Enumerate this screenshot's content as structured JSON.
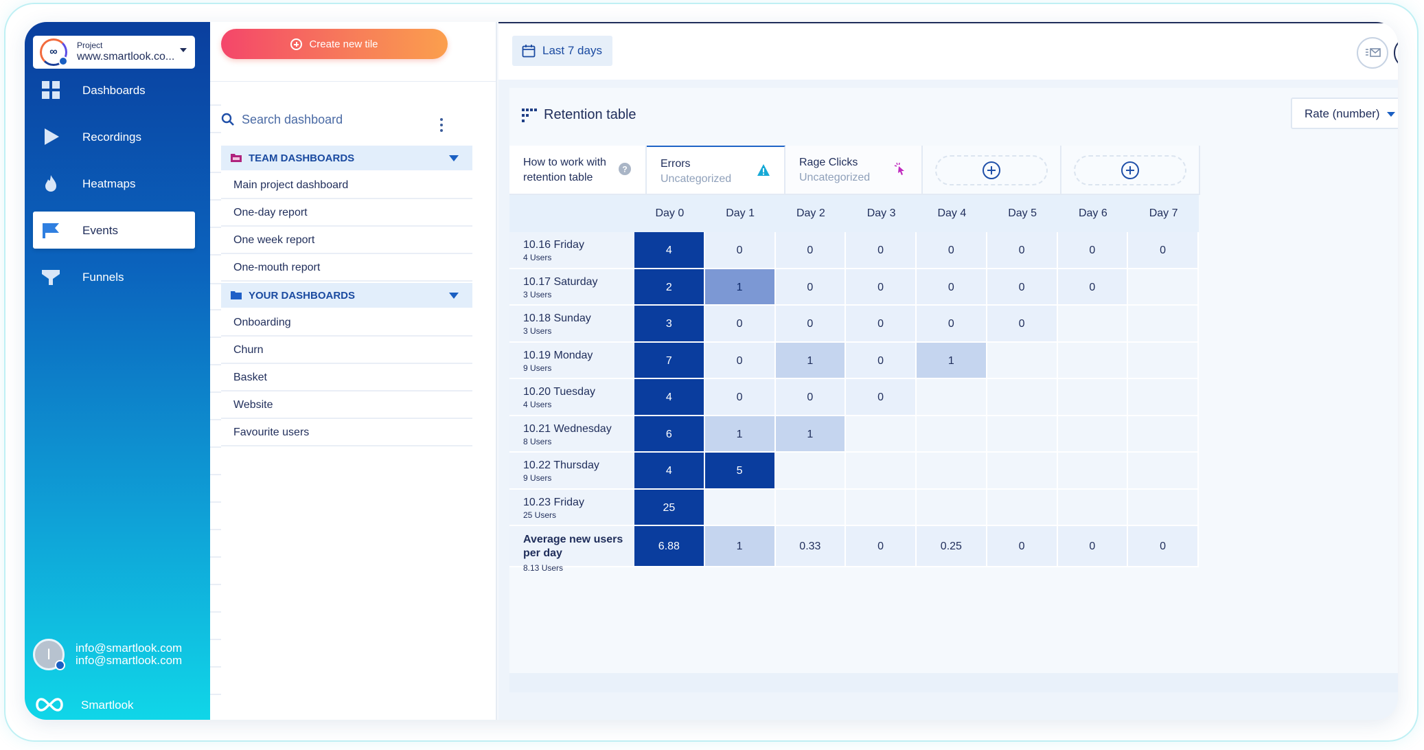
{
  "sidebar": {
    "project_label": "Project",
    "project_name": "www.smartlook.co...",
    "nav": [
      {
        "label": "Dashboards",
        "icon": "dashboards-icon"
      },
      {
        "label": "Recordings",
        "icon": "play-icon"
      },
      {
        "label": "Heatmaps",
        "icon": "flame-icon"
      },
      {
        "label": "Events",
        "icon": "flag-icon",
        "active": true
      },
      {
        "label": "Funnels",
        "icon": "funnel-icon"
      }
    ],
    "user_avatar_letter": "I",
    "user_email_1": "info@smartlook.com",
    "user_email_2": "info@smartlook.com",
    "brand": "Smartlook"
  },
  "panel": {
    "create_label": "Create new tile",
    "search_placeholder": "Search dashboard",
    "team_title": "TEAM DASHBOARDS",
    "team_items": [
      "Main project dashboard",
      "One-day report",
      "One week report",
      "One-mouth report"
    ],
    "your_title": "YOUR DASHBOARDS",
    "your_items": [
      "Onboarding",
      "Churn",
      "Basket",
      "Website",
      "Favourite users"
    ]
  },
  "topbar": {
    "date_range": "Last 7 days"
  },
  "card": {
    "title": "Retention table",
    "rate_select": "Rate (number)",
    "tabs": [
      {
        "line1": "How to work with",
        "line2": "retention table",
        "icon": "help-icon"
      },
      {
        "line1": "Errors",
        "line2": "Uncategorized",
        "icon": "warning-icon",
        "active": true
      },
      {
        "line1": "Rage Clicks",
        "line2": "Uncategorized",
        "icon": "rage-click-icon"
      }
    ]
  },
  "colors": {
    "dark_cell": "#0a3d9e",
    "mid_cell": "#7c98d4",
    "light_cell": "#c5d5ef",
    "pale_cell": "#e8f0fb",
    "empty_cell": "#f1f6fc",
    "accent": "#1f63c6"
  },
  "table": {
    "columns": [
      "Day 0",
      "Day 1",
      "Day 2",
      "Day 3",
      "Day 4",
      "Day 5",
      "Day 6",
      "Day 7"
    ],
    "rows": [
      {
        "date": "10.16 Friday",
        "users": "4 Users",
        "values": [
          "4",
          "0",
          "0",
          "0",
          "0",
          "0",
          "0",
          "0"
        ],
        "shade": [
          "dark",
          "pale",
          "pale",
          "pale",
          "pale",
          "pale",
          "pale",
          "pale"
        ]
      },
      {
        "date": "10.17 Saturday",
        "users": "3 Users",
        "values": [
          "2",
          "1",
          "0",
          "0",
          "0",
          "0",
          "0",
          ""
        ],
        "shade": [
          "dark",
          "mid",
          "pale",
          "pale",
          "pale",
          "pale",
          "pale",
          "empty"
        ]
      },
      {
        "date": "10.18 Sunday",
        "users": "3 Users",
        "values": [
          "3",
          "0",
          "0",
          "0",
          "0",
          "0",
          "",
          ""
        ],
        "shade": [
          "dark",
          "pale",
          "pale",
          "pale",
          "pale",
          "pale",
          "empty",
          "empty"
        ]
      },
      {
        "date": "10.19 Monday",
        "users": "9 Users",
        "values": [
          "7",
          "0",
          "1",
          "0",
          "1",
          "",
          "",
          ""
        ],
        "shade": [
          "dark",
          "pale",
          "light",
          "pale",
          "light",
          "empty",
          "empty",
          "empty"
        ]
      },
      {
        "date": "10.20 Tuesday",
        "users": "4 Users",
        "values": [
          "4",
          "0",
          "0",
          "0",
          "",
          "",
          "",
          ""
        ],
        "shade": [
          "dark",
          "pale",
          "pale",
          "pale",
          "empty",
          "empty",
          "empty",
          "empty"
        ]
      },
      {
        "date": "10.21 Wednesday",
        "users": "8 Users",
        "values": [
          "6",
          "1",
          "1",
          "",
          "",
          "",
          "",
          ""
        ],
        "shade": [
          "dark",
          "light",
          "light",
          "empty",
          "empty",
          "empty",
          "empty",
          "empty"
        ]
      },
      {
        "date": "10.22 Thursday",
        "users": "9 Users",
        "values": [
          "4",
          "5",
          "",
          "",
          "",
          "",
          "",
          ""
        ],
        "shade": [
          "dark",
          "dark",
          "empty",
          "empty",
          "empty",
          "empty",
          "empty",
          "empty"
        ]
      },
      {
        "date": "10.23 Friday",
        "users": "25 Users",
        "values": [
          "25",
          "",
          "",
          "",
          "",
          "",
          "",
          ""
        ],
        "shade": [
          "dark",
          "empty",
          "empty",
          "empty",
          "empty",
          "empty",
          "empty",
          "empty"
        ]
      }
    ],
    "average": {
      "label": "Average new users per day",
      "users": "8.13 Users",
      "values": [
        "6.88",
        "1",
        "0.33",
        "0",
        "0.25",
        "0",
        "0",
        "0"
      ],
      "shade": [
        "dark",
        "light",
        "pale",
        "pale",
        "pale",
        "pale",
        "pale",
        "pale"
      ]
    }
  }
}
